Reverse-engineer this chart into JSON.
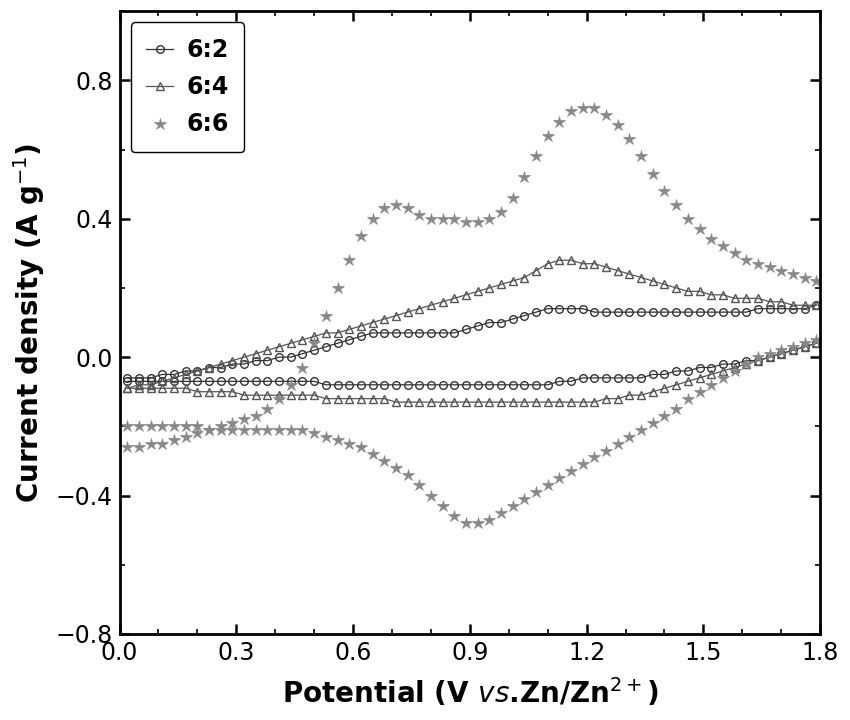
{
  "xlim": [
    0.0,
    1.8
  ],
  "ylim": [
    -0.8,
    1.0
  ],
  "xticks": [
    0.0,
    0.3,
    0.6,
    0.9,
    1.2,
    1.5,
    1.8
  ],
  "yticks": [
    -0.8,
    -0.4,
    0.0,
    0.4,
    0.8
  ],
  "background_color": "#ffffff",
  "color_62": "#333333",
  "color_64": "#555555",
  "color_66": "#888888",
  "s62_label": "6:2",
  "s64_label": "6:4",
  "s66_label": "6:6",
  "s62_x_an": [
    0.02,
    0.05,
    0.08,
    0.11,
    0.14,
    0.17,
    0.2,
    0.23,
    0.26,
    0.29,
    0.32,
    0.35,
    0.38,
    0.41,
    0.44,
    0.47,
    0.5,
    0.53,
    0.56,
    0.59,
    0.62,
    0.65,
    0.68,
    0.71,
    0.74,
    0.77,
    0.8,
    0.83,
    0.86,
    0.89,
    0.92,
    0.95,
    0.98,
    1.01,
    1.04,
    1.07,
    1.1,
    1.13,
    1.16,
    1.19,
    1.22,
    1.25,
    1.28,
    1.31,
    1.34,
    1.37,
    1.4,
    1.43,
    1.46,
    1.49,
    1.52,
    1.55,
    1.58,
    1.61,
    1.64,
    1.67,
    1.7,
    1.73,
    1.76,
    1.79
  ],
  "s62_y_an": [
    -0.06,
    -0.06,
    -0.06,
    -0.05,
    -0.05,
    -0.04,
    -0.04,
    -0.03,
    -0.03,
    -0.02,
    -0.02,
    -0.01,
    -0.01,
    0.0,
    0.0,
    0.01,
    0.02,
    0.03,
    0.04,
    0.05,
    0.06,
    0.07,
    0.07,
    0.07,
    0.07,
    0.07,
    0.07,
    0.07,
    0.07,
    0.08,
    0.09,
    0.1,
    0.1,
    0.11,
    0.12,
    0.13,
    0.14,
    0.14,
    0.14,
    0.14,
    0.13,
    0.13,
    0.13,
    0.13,
    0.13,
    0.13,
    0.13,
    0.13,
    0.13,
    0.13,
    0.13,
    0.13,
    0.13,
    0.13,
    0.14,
    0.14,
    0.14,
    0.14,
    0.14,
    0.15
  ],
  "s62_x_cat": [
    1.79,
    1.76,
    1.73,
    1.7,
    1.67,
    1.64,
    1.61,
    1.58,
    1.55,
    1.52,
    1.49,
    1.46,
    1.43,
    1.4,
    1.37,
    1.34,
    1.31,
    1.28,
    1.25,
    1.22,
    1.19,
    1.16,
    1.13,
    1.1,
    1.07,
    1.04,
    1.01,
    0.98,
    0.95,
    0.92,
    0.89,
    0.86,
    0.83,
    0.8,
    0.77,
    0.74,
    0.71,
    0.68,
    0.65,
    0.62,
    0.59,
    0.56,
    0.53,
    0.5,
    0.47,
    0.44,
    0.41,
    0.38,
    0.35,
    0.32,
    0.29,
    0.26,
    0.23,
    0.2,
    0.17,
    0.14,
    0.11,
    0.08,
    0.05,
    0.02
  ],
  "s62_y_cat": [
    0.04,
    0.03,
    0.02,
    0.01,
    0.0,
    -0.01,
    -0.01,
    -0.02,
    -0.02,
    -0.03,
    -0.03,
    -0.04,
    -0.04,
    -0.05,
    -0.05,
    -0.06,
    -0.06,
    -0.06,
    -0.06,
    -0.06,
    -0.06,
    -0.07,
    -0.07,
    -0.08,
    -0.08,
    -0.08,
    -0.08,
    -0.08,
    -0.08,
    -0.08,
    -0.08,
    -0.08,
    -0.08,
    -0.08,
    -0.08,
    -0.08,
    -0.08,
    -0.08,
    -0.08,
    -0.08,
    -0.08,
    -0.08,
    -0.08,
    -0.07,
    -0.07,
    -0.07,
    -0.07,
    -0.07,
    -0.07,
    -0.07,
    -0.07,
    -0.07,
    -0.07,
    -0.07,
    -0.07,
    -0.07,
    -0.07,
    -0.07,
    -0.07,
    -0.07
  ],
  "s64_x_an": [
    0.02,
    0.05,
    0.08,
    0.11,
    0.14,
    0.17,
    0.2,
    0.23,
    0.26,
    0.29,
    0.32,
    0.35,
    0.38,
    0.41,
    0.44,
    0.47,
    0.5,
    0.53,
    0.56,
    0.59,
    0.62,
    0.65,
    0.68,
    0.71,
    0.74,
    0.77,
    0.8,
    0.83,
    0.86,
    0.89,
    0.92,
    0.95,
    0.98,
    1.01,
    1.04,
    1.07,
    1.1,
    1.13,
    1.16,
    1.19,
    1.22,
    1.25,
    1.28,
    1.31,
    1.34,
    1.37,
    1.4,
    1.43,
    1.46,
    1.49,
    1.52,
    1.55,
    1.58,
    1.61,
    1.64,
    1.67,
    1.7,
    1.73,
    1.76,
    1.79
  ],
  "s64_y_an": [
    -0.09,
    -0.08,
    -0.08,
    -0.07,
    -0.06,
    -0.05,
    -0.04,
    -0.03,
    -0.02,
    -0.01,
    0.0,
    0.01,
    0.02,
    0.03,
    0.04,
    0.05,
    0.06,
    0.07,
    0.07,
    0.08,
    0.09,
    0.1,
    0.11,
    0.12,
    0.13,
    0.14,
    0.15,
    0.16,
    0.17,
    0.18,
    0.19,
    0.2,
    0.21,
    0.22,
    0.23,
    0.25,
    0.27,
    0.28,
    0.28,
    0.27,
    0.27,
    0.26,
    0.25,
    0.24,
    0.23,
    0.22,
    0.21,
    0.2,
    0.19,
    0.19,
    0.18,
    0.18,
    0.17,
    0.17,
    0.17,
    0.16,
    0.16,
    0.15,
    0.15,
    0.15
  ],
  "s64_x_cat": [
    1.79,
    1.76,
    1.73,
    1.7,
    1.67,
    1.64,
    1.61,
    1.58,
    1.55,
    1.52,
    1.49,
    1.46,
    1.43,
    1.4,
    1.37,
    1.34,
    1.31,
    1.28,
    1.25,
    1.22,
    1.19,
    1.16,
    1.13,
    1.1,
    1.07,
    1.04,
    1.01,
    0.98,
    0.95,
    0.92,
    0.89,
    0.86,
    0.83,
    0.8,
    0.77,
    0.74,
    0.71,
    0.68,
    0.65,
    0.62,
    0.59,
    0.56,
    0.53,
    0.5,
    0.47,
    0.44,
    0.41,
    0.38,
    0.35,
    0.32,
    0.29,
    0.26,
    0.23,
    0.2,
    0.17,
    0.14,
    0.11,
    0.08,
    0.05,
    0.02
  ],
  "s64_y_cat": [
    0.04,
    0.03,
    0.02,
    0.01,
    0.0,
    -0.01,
    -0.02,
    -0.03,
    -0.04,
    -0.05,
    -0.06,
    -0.07,
    -0.08,
    -0.09,
    -0.1,
    -0.11,
    -0.11,
    -0.12,
    -0.12,
    -0.13,
    -0.13,
    -0.13,
    -0.13,
    -0.13,
    -0.13,
    -0.13,
    -0.13,
    -0.13,
    -0.13,
    -0.13,
    -0.13,
    -0.13,
    -0.13,
    -0.13,
    -0.13,
    -0.13,
    -0.13,
    -0.12,
    -0.12,
    -0.12,
    -0.12,
    -0.12,
    -0.12,
    -0.11,
    -0.11,
    -0.11,
    -0.11,
    -0.11,
    -0.11,
    -0.11,
    -0.1,
    -0.1,
    -0.1,
    -0.1,
    -0.09,
    -0.09,
    -0.09,
    -0.09,
    -0.09,
    -0.09
  ],
  "s66_x_an": [
    0.02,
    0.05,
    0.08,
    0.11,
    0.14,
    0.17,
    0.2,
    0.23,
    0.26,
    0.29,
    0.32,
    0.35,
    0.38,
    0.41,
    0.44,
    0.47,
    0.5,
    0.53,
    0.56,
    0.59,
    0.62,
    0.65,
    0.68,
    0.71,
    0.74,
    0.77,
    0.8,
    0.83,
    0.86,
    0.89,
    0.92,
    0.95,
    0.98,
    1.01,
    1.04,
    1.07,
    1.1,
    1.13,
    1.16,
    1.19,
    1.22,
    1.25,
    1.28,
    1.31,
    1.34,
    1.37,
    1.4,
    1.43,
    1.46,
    1.49,
    1.52,
    1.55,
    1.58,
    1.61,
    1.64,
    1.67,
    1.7,
    1.73,
    1.76,
    1.79
  ],
  "s66_y_an": [
    -0.26,
    -0.26,
    -0.25,
    -0.25,
    -0.24,
    -0.23,
    -0.22,
    -0.21,
    -0.2,
    -0.19,
    -0.18,
    -0.17,
    -0.15,
    -0.12,
    -0.08,
    -0.03,
    0.04,
    0.12,
    0.2,
    0.28,
    0.35,
    0.4,
    0.43,
    0.44,
    0.43,
    0.41,
    0.4,
    0.4,
    0.4,
    0.39,
    0.39,
    0.4,
    0.42,
    0.46,
    0.52,
    0.58,
    0.64,
    0.68,
    0.71,
    0.72,
    0.72,
    0.7,
    0.67,
    0.63,
    0.58,
    0.53,
    0.48,
    0.44,
    0.4,
    0.37,
    0.34,
    0.32,
    0.3,
    0.28,
    0.27,
    0.26,
    0.25,
    0.24,
    0.23,
    0.22
  ],
  "s66_x_cat": [
    1.79,
    1.76,
    1.73,
    1.7,
    1.67,
    1.64,
    1.61,
    1.58,
    1.55,
    1.52,
    1.49,
    1.46,
    1.43,
    1.4,
    1.37,
    1.34,
    1.31,
    1.28,
    1.25,
    1.22,
    1.19,
    1.16,
    1.13,
    1.1,
    1.07,
    1.04,
    1.01,
    0.98,
    0.95,
    0.92,
    0.89,
    0.86,
    0.83,
    0.8,
    0.77,
    0.74,
    0.71,
    0.68,
    0.65,
    0.62,
    0.59,
    0.56,
    0.53,
    0.5,
    0.47,
    0.44,
    0.41,
    0.38,
    0.35,
    0.32,
    0.29,
    0.26,
    0.23,
    0.2,
    0.17,
    0.14,
    0.11,
    0.08,
    0.05,
    0.02
  ],
  "s66_y_cat": [
    0.05,
    0.04,
    0.03,
    0.02,
    0.01,
    0.0,
    -0.02,
    -0.04,
    -0.06,
    -0.08,
    -0.1,
    -0.12,
    -0.15,
    -0.17,
    -0.19,
    -0.21,
    -0.23,
    -0.25,
    -0.27,
    -0.29,
    -0.31,
    -0.33,
    -0.35,
    -0.37,
    -0.39,
    -0.41,
    -0.43,
    -0.45,
    -0.47,
    -0.48,
    -0.48,
    -0.46,
    -0.43,
    -0.4,
    -0.37,
    -0.34,
    -0.32,
    -0.3,
    -0.28,
    -0.26,
    -0.25,
    -0.24,
    -0.23,
    -0.22,
    -0.21,
    -0.21,
    -0.21,
    -0.21,
    -0.21,
    -0.21,
    -0.21,
    -0.21,
    -0.21,
    -0.2,
    -0.2,
    -0.2,
    -0.2,
    -0.2,
    -0.2,
    -0.2
  ]
}
